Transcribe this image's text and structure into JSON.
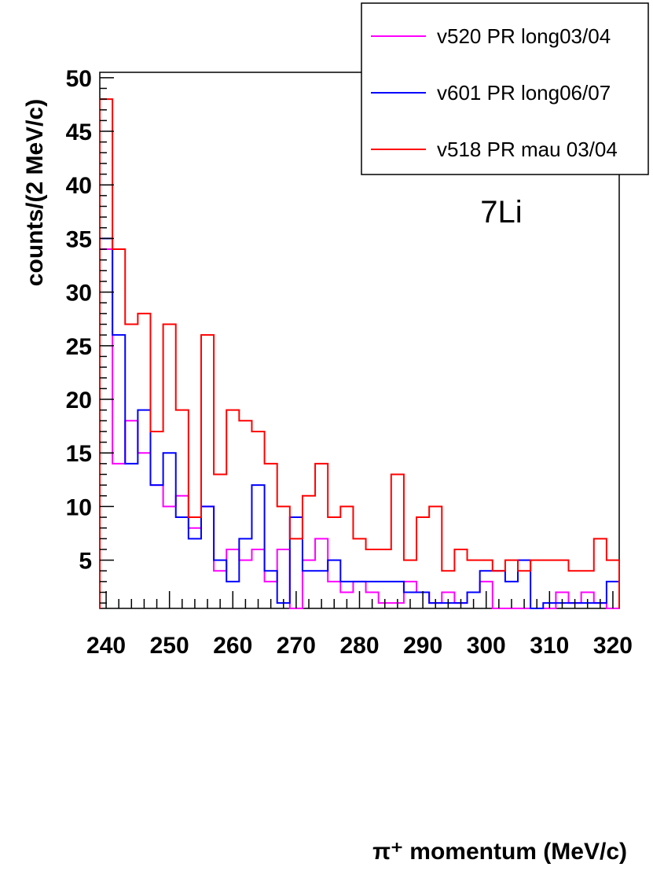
{
  "chart_data": {
    "type": "histogram",
    "xlabel": "π⁺ momentum (MeV/c)",
    "ylabel": "counts/(2 MeV/c)",
    "annotation": "7Li",
    "xlim": [
      239,
      321
    ],
    "ylim": [
      0.5,
      50.5
    ],
    "x_ticks": [
      240,
      250,
      260,
      270,
      280,
      290,
      300,
      310,
      320
    ],
    "y_ticks": [
      5,
      10,
      15,
      20,
      25,
      30,
      35,
      40,
      45,
      50
    ],
    "bin_edges": [
      239,
      241,
      243,
      245,
      247,
      249,
      251,
      253,
      255,
      257,
      259,
      261,
      263,
      265,
      267,
      269,
      271,
      273,
      275,
      277,
      279,
      281,
      283,
      285,
      287,
      289,
      291,
      293,
      295,
      297,
      299,
      301,
      303,
      305,
      307,
      309,
      311,
      313,
      315,
      317,
      319,
      321
    ],
    "legend_position": "top-right",
    "series": [
      {
        "name": "v520 PR long03/04",
        "color": "#ff00ff",
        "values": [
          34,
          14,
          18,
          15,
          12,
          10,
          11,
          8,
          10,
          4,
          6,
          5,
          6,
          3,
          6,
          0,
          5,
          7,
          3,
          2,
          3,
          2,
          1,
          1,
          3,
          2,
          1,
          2,
          1,
          2,
          3,
          0,
          0,
          0,
          0,
          0,
          2,
          1,
          2,
          1,
          0
        ]
      },
      {
        "name": "v601 PR long06/07",
        "color": "#0000ff",
        "values": [
          35,
          26,
          14,
          19,
          12,
          15,
          9,
          7,
          10,
          5,
          3,
          7,
          12,
          4,
          1,
          9,
          4,
          4,
          5,
          3,
          3,
          3,
          3,
          3,
          2,
          2,
          1,
          1,
          1,
          2,
          4,
          4,
          3,
          5,
          0,
          1,
          1,
          1,
          1,
          1,
          3
        ]
      },
      {
        "name": "v518 PR mau 03/04",
        "color": "#ff0000",
        "values": [
          48,
          34,
          27,
          28,
          17,
          27,
          19,
          9,
          26,
          13,
          19,
          18,
          17,
          14,
          10,
          7,
          11,
          14,
          9,
          10,
          7,
          6,
          6,
          13,
          5,
          9,
          10,
          4,
          6,
          5,
          5,
          4,
          5,
          4,
          5,
          5,
          5,
          4,
          4,
          7,
          5
        ]
      }
    ]
  }
}
